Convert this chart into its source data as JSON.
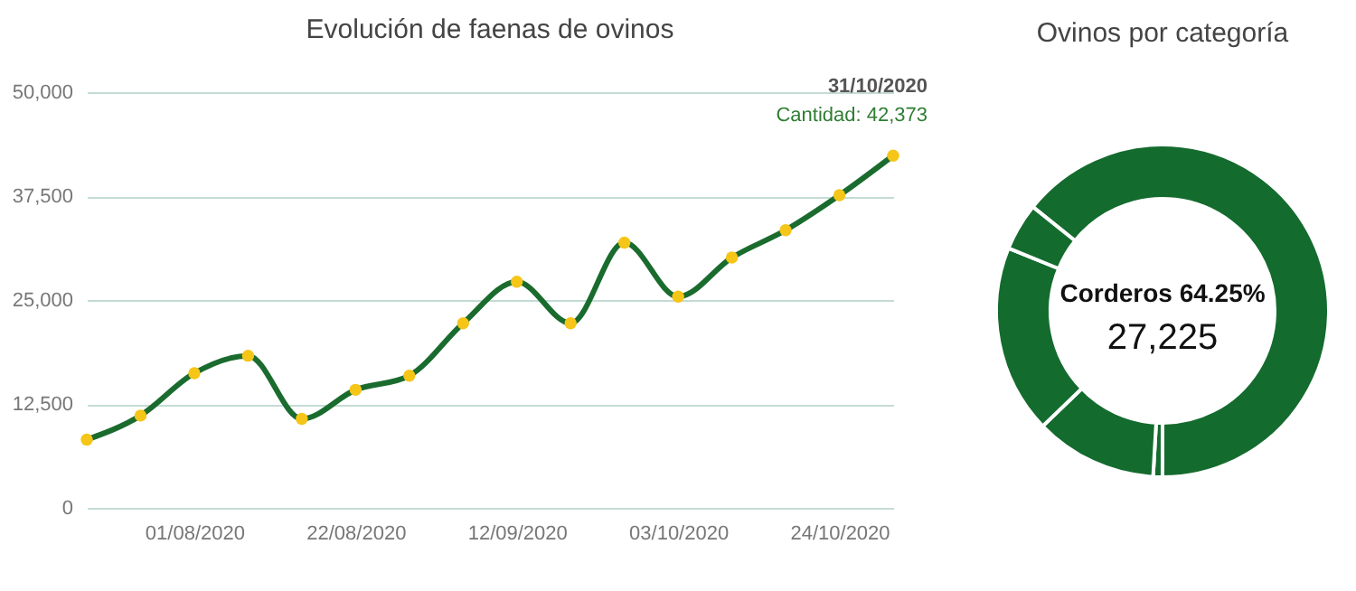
{
  "chart_data": [
    {
      "type": "line",
      "title": "Evolución de faenas de ovinos",
      "x": [
        "2020-07-18",
        "2020-07-25",
        "2020-08-01",
        "2020-08-08",
        "2020-08-15",
        "2020-08-22",
        "2020-08-29",
        "2020-09-05",
        "2020-09-12",
        "2020-09-19",
        "2020-09-26",
        "2020-10-03",
        "2020-10-10",
        "2020-10-17",
        "2020-10-24",
        "2020-10-31"
      ],
      "series": [
        {
          "color": "#1a6b2e",
          "values": [
            8200,
            11100,
            16200,
            18300,
            10700,
            14200,
            15900,
            22200,
            27200,
            22200,
            31900,
            25400,
            30100,
            33400,
            37600,
            42373
          ]
        }
      ],
      "xlim": [
        "2020-07-18",
        "2020-10-31"
      ],
      "xticks": [
        {
          "value": "2020-08-01",
          "label": "01/08/2020"
        },
        {
          "value": "2020-08-22",
          "label": "22/08/2020"
        },
        {
          "value": "2020-09-12",
          "label": "12/09/2020"
        },
        {
          "value": "2020-10-03",
          "label": "03/10/2020"
        },
        {
          "value": "2020-10-24",
          "label": "24/10/2020"
        }
      ],
      "ylim": [
        0,
        50000
      ],
      "yticks": [
        {
          "value": 0,
          "label": "0"
        },
        {
          "value": 12500,
          "label": "12,500"
        },
        {
          "value": 25000,
          "label": "25,000"
        },
        {
          "value": 37500,
          "label": "37,500"
        },
        {
          "value": 50000,
          "label": "50,000"
        }
      ],
      "grid": "y",
      "marker": "circle",
      "line_style": "solid",
      "annotations": [
        "31/10/2020",
        {
          "text": "Cantidad: 42,373",
          "x": "2020-10-31",
          "y": 42373
        }
      ]
    },
    {
      "type": "donut",
      "title": "Ovinos por categoría",
      "categories": [
        "Corderos",
        null,
        null,
        null,
        null
      ],
      "values": [
        64.25,
        0.9,
        11.9,
        18.35,
        4.6
      ],
      "colors": [
        "#146b2e",
        "#146b2e",
        "#146b2e",
        "#146b2e",
        "#146b2e"
      ],
      "value_labels": [
        "64.25%",
        null,
        null,
        null,
        null
      ],
      "annotations": [
        "27,225"
      ]
    }
  ]
}
